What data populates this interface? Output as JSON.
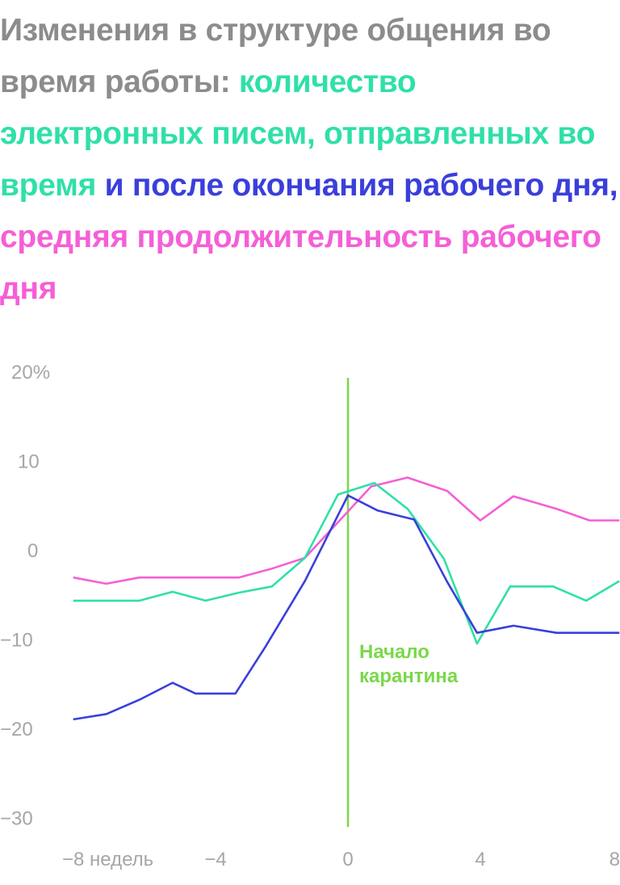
{
  "title_parts": [
    {
      "text": "Изменения в структуре общения во время работы:",
      "color": "#8c8c8c"
    },
    {
      "text": "количество электронных писем, отправленных во время",
      "color": "#2fe0a8"
    },
    {
      "text": "и после окончания рабочего дня,",
      "color": "#3a3fdb"
    },
    {
      "text": "средняя продолжительность рабочего дня",
      "color": "#f55fd6"
    }
  ],
  "chart_data": {
    "type": "line",
    "x_ticks": [
      {
        "value": -8,
        "label": "−8 недель"
      },
      {
        "value": -4,
        "label": "−4"
      },
      {
        "value": 0,
        "label": "0"
      },
      {
        "value": 4,
        "label": "4"
      },
      {
        "value": 8,
        "label": "8"
      }
    ],
    "y_ticks": [
      {
        "value": 20,
        "label": "20%"
      },
      {
        "value": 10,
        "label": "10"
      },
      {
        "value": 0,
        "label": "0"
      },
      {
        "value": -10,
        "label": "−10"
      },
      {
        "value": -20,
        "label": "−20"
      },
      {
        "value": -30,
        "label": "−30"
      }
    ],
    "xlim": [
      -9.3,
      8.2
    ],
    "ylim": [
      -30,
      20
    ],
    "series": [
      {
        "color": "#f55fd6",
        "x": [
          -8.3,
          -7.3,
          -6.3,
          -5.3,
          -4.3,
          -3.3,
          -2.3,
          -1.3,
          -0.3,
          0.7,
          1.8,
          3,
          4,
          5,
          6.3,
          7.3,
          8.2
        ],
        "y": [
          -2.1,
          -2.8,
          -2.1,
          -2.1,
          -2.1,
          -2.1,
          -1.1,
          0.1,
          4.1,
          8.1,
          9.1,
          7.6,
          4.3,
          7,
          5.6,
          4.3,
          4.3
        ]
      },
      {
        "color": "#2fe0a8",
        "x": [
          -8.3,
          -7.3,
          -6.3,
          -5.3,
          -4.3,
          -3.3,
          -2.3,
          -1.3,
          -0.3,
          0.8,
          1.8,
          2.9,
          3.9,
          4.9,
          6.2,
          7.2,
          8.2
        ],
        "y": [
          -4.7,
          -4.7,
          -4.7,
          -3.7,
          -4.7,
          -3.8,
          -3.1,
          0.1,
          7.2,
          8.5,
          5.6,
          0,
          -9.5,
          -3.1,
          -3.1,
          -4.7,
          -2.5
        ]
      },
      {
        "color": "#3a3fdb",
        "x": [
          -8.3,
          -7.3,
          -6.3,
          -5.3,
          -4.6,
          -3.4,
          -2.5,
          -1.3,
          0,
          0.9,
          2,
          3,
          3.9,
          5,
          6.3,
          7.3,
          8.2
        ],
        "y": [
          -18,
          -17.4,
          -15.8,
          -13.9,
          -15.1,
          -15.1,
          -9.9,
          -2.5,
          7.1,
          5.4,
          4.4,
          -2.6,
          -8.3,
          -7.5,
          -8.3,
          -8.3,
          -8.3
        ]
      }
    ],
    "marker": {
      "x": 0,
      "color": "#7ad84a",
      "label_lines": [
        "Начало",
        "карантина"
      ]
    }
  }
}
